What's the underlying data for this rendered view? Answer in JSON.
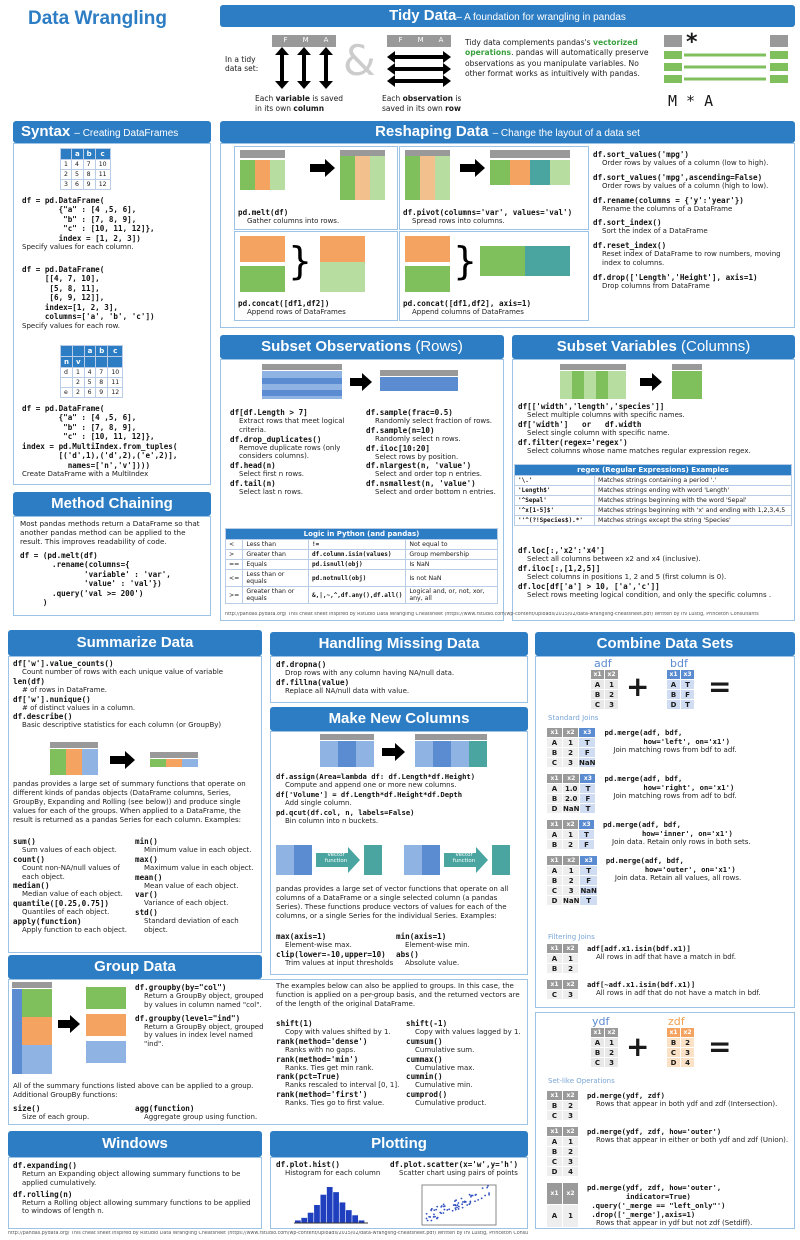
{
  "title": "Data Wrangling",
  "tidy": {
    "header": "Tidy Data",
    "subheader": "– A foundation for wrangling in pandas",
    "in_a_tidy": "In a tidy\ndata set:",
    "amp": "&",
    "var_caption_1": "Each ",
    "var_caption_b": "variable",
    "var_caption_2": " is saved in its own ",
    "var_caption_c": "column",
    "obs_caption_1": "Each ",
    "obs_caption_b": "observation",
    "obs_caption_2": " is saved in its own ",
    "obs_caption_c": "row",
    "desc_1": "Tidy data complements pandas's ",
    "desc_v": "vectorized operations",
    "desc_2": ". pandas will automatically preserve observations as you manipulate variables. No other format works as intuitively with pandas.",
    "mstar": "M * A",
    "fma": [
      "F",
      "M",
      "A"
    ]
  },
  "syntax": {
    "header": "Syntax",
    "subheader": "– Creating DataFrames",
    "table1_cols": [
      "",
      "a",
      "b",
      "c"
    ],
    "table1_rows": [
      [
        "1",
        "4",
        "7",
        "10"
      ],
      [
        "2",
        "5",
        "8",
        "11"
      ],
      [
        "3",
        "6",
        "9",
        "12"
      ]
    ],
    "code1": "df = pd.DataFrame(\n        {\"a\" : [4 ,5, 6],\n         \"b\" : [7, 8, 9],\n         \"c\" : [10, 11, 12]},\n        index = [1, 2, 3])",
    "desc1": "Specify values for each column.",
    "code2": "df = pd.DataFrame(\n     [[4, 7, 10],\n      [5, 8, 11],\n      [6, 9, 12]],\n     index=[1, 2, 3],\n     columns=['a', 'b', 'c'])",
    "desc2": "Specify values for each row.",
    "table2_cols": [
      "",
      "",
      "a",
      "b",
      "c"
    ],
    "table2_sub": [
      "n",
      "v",
      "",
      "",
      ""
    ],
    "table2_rows": [
      [
        "d",
        "1",
        "4",
        "7",
        "10"
      ],
      [
        "",
        "2",
        "5",
        "8",
        "11"
      ],
      [
        "e",
        "2",
        "6",
        "9",
        "12"
      ]
    ],
    "code3": "df = pd.DataFrame(\n        {\"a\" : [4 ,5, 6],\n         \"b\" : [7, 8, 9],\n         \"c\" : [10, 11, 12]},\nindex = pd.MultiIndex.from_tuples(\n        [('d',1),('d',2),('e',2)],\n          names=['n','v'])))",
    "desc3": "Create DataFrame with a MultiIndex"
  },
  "method": {
    "header": "Method Chaining",
    "desc": "Most pandas methods return a DataFrame so that another pandas method can be applied to the result. This improves readability of code.",
    "code": "df = (pd.melt(df)\n       .rename(columns={\n              'variable' : 'var',\n              'value' : 'val'})\n       .query('val >= 200')\n     )"
  },
  "reshape": {
    "header": "Reshaping Data",
    "subheader": "– Change the layout of a data set",
    "melt": "pd.melt(df)",
    "melt_d": "Gather columns into rows.",
    "pivot": "df.pivot(columns='var', values='val')",
    "pivot_d": "Spread rows into columns.",
    "concat": "pd.concat([df1,df2])",
    "concat_d": "Append rows of DataFrames",
    "concat1": "pd.concat([df1,df2], axis=1)",
    "concat1_d": "Append columns of DataFrames",
    "right": [
      {
        "c": "df.sort_values('mpg')",
        "d": "Order rows by values of a column (low to high)."
      },
      {
        "c": "df.sort_values('mpg',ascending=False)",
        "d": "Order rows by values of a column (high to low)."
      },
      {
        "c": "df.rename(columns = {'y':'year'})",
        "d": "Rename the columns of a DataFrame"
      },
      {
        "c": "df.sort_index()",
        "d": "Sort the index of a DataFrame"
      },
      {
        "c": "df.reset_index()",
        "d": "Reset index of DataFrame to row numbers, moving index to columns."
      },
      {
        "c": "df.drop(['Length','Height'], axis=1)",
        "d": "Drop columns from DataFrame"
      }
    ]
  },
  "subset_rows": {
    "header": "Subset Observations",
    "header2": " (Rows)",
    "left": [
      {
        "c": "df[df.Length > 7]",
        "d": "Extract rows that meet logical criteria."
      },
      {
        "c": "df.drop_duplicates()",
        "d": "Remove duplicate rows (only considers columns)."
      },
      {
        "c": "df.head(n)",
        "d": "Select first n rows."
      },
      {
        "c": "df.tail(n)",
        "d": "Select last n rows."
      }
    ],
    "right": [
      {
        "c": "df.sample(frac=0.5)",
        "d": "Randomly select fraction of rows."
      },
      {
        "c": "df.sample(n=10)",
        "d": "Randomly select n rows."
      },
      {
        "c": "df.iloc[10:20]",
        "d": "Select rows by position."
      },
      {
        "c": "df.nlargest(n, 'value')",
        "d": "Select and order top n entries."
      },
      {
        "c": "df.nsmallest(n, 'value')",
        "d": "Select and order bottom n entries."
      }
    ],
    "logic_header": "Logic in Python (and pandas)",
    "logic": [
      [
        "<",
        "Less than",
        "!=",
        "Not equal to"
      ],
      [
        ">",
        "Greater than",
        "df.column.isin(values)",
        "Group membership"
      ],
      [
        "==",
        "Equals",
        "pd.isnull(obj)",
        "Is NaN"
      ],
      [
        "<=",
        "Less than or equals",
        "pd.notnull(obj)",
        "Is not NaN"
      ],
      [
        ">=",
        "Greater than or equals",
        "&,|,~,^,df.any(),df.all()",
        "Logical and, or, not, xor, any, all"
      ]
    ]
  },
  "subset_cols": {
    "header": "Subset Variables",
    "header2": " (Columns)",
    "items": [
      {
        "c": "df[['width','length','species']]",
        "d": "Select multiple columns with specific names."
      },
      {
        "c": "df['width']   or   df.width",
        "d": "Select single column with specific name."
      },
      {
        "c": "df.filter(regex='regex')",
        "d": "Select columns whose name matches regular expression regex."
      }
    ],
    "regex_header": "regex (Regular Expressions) Examples",
    "regex": [
      [
        "'\\.'",
        "Matches strings containing a period '.'"
      ],
      [
        "'Length$'",
        "Matches strings ending with word 'Length'"
      ],
      [
        "'^Sepal'",
        "Matches strings beginning with the word 'Sepal'"
      ],
      [
        "'^x[1-5]$'",
        "Matches strings beginning with 'x' and ending with 1,2,3,4,5"
      ],
      [
        "''^(?!Species$).*'",
        "Matches strings except the string 'Species'"
      ]
    ],
    "items2": [
      {
        "c": "df.loc[:,'x2':'x4']",
        "d": "Select all columns between x2 and x4 (inclusive)."
      },
      {
        "c": "df.iloc[:,[1,2,5]]",
        "d": "Select columns in positions 1, 2 and 5 (first column is 0)."
      },
      {
        "c": "df.loc[df['a'] > 10, ['a','c']]",
        "d": "Select rows meeting logical condition, and only the specific columns ."
      }
    ]
  },
  "footer1": "http://pandas.pydata.org/   This cheat sheet inspired by Rstudio Data Wrangling Cheatsheet (https://www.rstudio.com/wp-content/uploads/2015/02/data-wrangling-cheatsheet.pdf) Written by Irv Lustig, Princeton Consultants",
  "summarize": {
    "header": "Summarize Data",
    "top": [
      {
        "c": "df['w'].value_counts()",
        "d": "Count number of rows with each unique value of variable"
      },
      {
        "c": "len(df)",
        "d": "# of rows in DataFrame."
      },
      {
        "c": "df['w'].nunique()",
        "d": "# of distinct values in a column."
      },
      {
        "c": "df.describe()",
        "d": "Basic descriptive statistics for each column (or GroupBy)"
      }
    ],
    "para": "pandas provides a large set of summary functions that operate on different kinds of pandas objects (DataFrame columns, Series, GroupBy, Expanding and Rolling (see below)) and produce single values for each of the groups. When applied to a DataFrame, the result is returned as a pandas Series for each column. Examples:",
    "left": [
      {
        "c": "sum()",
        "d": "Sum values of each object."
      },
      {
        "c": "count()",
        "d": "Count non-NA/null values of each object."
      },
      {
        "c": "median()",
        "d": "Median value of each object."
      },
      {
        "c": "quantile([0.25,0.75])",
        "d": "Quantiles of each object."
      },
      {
        "c": "apply(function)",
        "d": "Apply function to each object."
      }
    ],
    "right": [
      {
        "c": "min()",
        "d": "Minimum value in each object."
      },
      {
        "c": "max()",
        "d": "Maximum value in each object."
      },
      {
        "c": "mean()",
        "d": "Mean value of each object."
      },
      {
        "c": "var()",
        "d": "Variance of each object."
      },
      {
        "c": "std()",
        "d": "Standard deviation of each object."
      }
    ]
  },
  "missing": {
    "header": "Handling Missing Data",
    "items": [
      {
        "c": "df.dropna()",
        "d": "Drop rows with any column having NA/null data."
      },
      {
        "c": "df.fillna(value)",
        "d": "Replace all NA/null data with value."
      }
    ]
  },
  "newcols": {
    "header": "Make New Columns",
    "items": [
      {
        "c": "df.assign(Area=lambda df: df.Length*df.Height)",
        "d": "Compute and append one or more new columns."
      },
      {
        "c": "df['Volume'] = df.Length*df.Height*df.Depth",
        "d": "Add single column."
      },
      {
        "c": "pd.qcut(df.col, n, labels=False)",
        "d": "Bin column into n buckets."
      }
    ],
    "vf": "Vector function",
    "para": "pandas provides a large set of vector functions that operate on all columns of a DataFrame or a single selected column (a pandas Series). These functions produce vectors of values for each of the columns, or a single Series for the individual Series. Examples:",
    "left": [
      {
        "c": "max(axis=1)",
        "d": "Element-wise max."
      },
      {
        "c": "clip(lower=-10,upper=10)",
        "d": "Trim values at input thresholds"
      }
    ],
    "right": [
      {
        "c": "min(axis=1)",
        "d": "Element-wise min."
      },
      {
        "c": "abs()",
        "d": "Absolute value."
      }
    ]
  },
  "group": {
    "header": "Group Data",
    "items": [
      {
        "c": "df.groupby(by=\"col\")",
        "d": "Return a GroupBy object, grouped by values in column named \"col\"."
      },
      {
        "c": "df.groupby(level=\"ind\")",
        "d": "Return a GroupBy object, grouped by values in index level named \"ind\"."
      }
    ],
    "para": "All of the summary functions listed above can be applied to a group. Additional GroupBy functions:",
    "left": [
      {
        "c": "size()",
        "d": "Size of each group."
      }
    ],
    "right": [
      {
        "c": "agg(function)",
        "d": "Aggregate group using function."
      }
    ],
    "para2": "The examples below can also be applied to groups. In this case, the function is applied on a per-group basis, and the returned vectors are of the length of the original DataFrame.",
    "l2": [
      {
        "c": "shift(1)",
        "d": "Copy with values shifted by 1."
      },
      {
        "c": "rank(method='dense')",
        "d": "Ranks with no gaps."
      },
      {
        "c": "rank(method='min')",
        "d": "Ranks. Ties get min rank."
      },
      {
        "c": "rank(pct=True)",
        "d": "Ranks rescaled to interval [0, 1]."
      },
      {
        "c": "rank(method='first')",
        "d": "Ranks. Ties go to first value."
      }
    ],
    "r2": [
      {
        "c": "shift(-1)",
        "d": "Copy with values lagged by 1."
      },
      {
        "c": "cumsum()",
        "d": "Cumulative sum."
      },
      {
        "c": "cummax()",
        "d": "Cumulative max."
      },
      {
        "c": "cummin()",
        "d": "Cumulative min."
      },
      {
        "c": "cumprod()",
        "d": "Cumulative product."
      }
    ]
  },
  "windows": {
    "header": "Windows",
    "items": [
      {
        "c": "df.expanding()",
        "d": "Return an Expanding object allowing summary functions to be applied cumulatively."
      },
      {
        "c": "df.rolling(n)",
        "d": "Return a Rolling object allowing summary functions to be applied to windows of length n."
      }
    ]
  },
  "plotting": {
    "header": "Plotting",
    "hist": "df.plot.hist()",
    "hist_d": "Histogram for each column",
    "scatter": "df.plot.scatter(x='w',y='h')",
    "scatter_d": "Scatter chart using pairs of points"
  },
  "combine": {
    "header": "Combine Data Sets",
    "adf": "adf",
    "bdf": "bdf",
    "adf_rows": [
      [
        "x1",
        "x2"
      ],
      [
        "A",
        "1"
      ],
      [
        "B",
        "2"
      ],
      [
        "C",
        "3"
      ]
    ],
    "bdf_rows": [
      [
        "x1",
        "x3"
      ],
      [
        "A",
        "T"
      ],
      [
        "B",
        "F"
      ],
      [
        "D",
        "T"
      ]
    ],
    "std": "Standard Joins",
    "joins": [
      {
        "rows": [
          [
            "x1",
            "x2",
            "x3"
          ],
          [
            "A",
            "1",
            "T"
          ],
          [
            "B",
            "2",
            "F"
          ],
          [
            "C",
            "3",
            "NaN"
          ]
        ],
        "c": "pd.merge(adf, bdf,\n         how='left', on='x1')",
        "d": "Join matching rows from bdf to adf."
      },
      {
        "rows": [
          [
            "x1",
            "x2",
            "x3"
          ],
          [
            "A",
            "1.0",
            "T"
          ],
          [
            "B",
            "2.0",
            "F"
          ],
          [
            "D",
            "NaN",
            "T"
          ]
        ],
        "c": "pd.merge(adf, bdf,\n         how='right', on='x1')",
        "d": "Join matching rows from adf to bdf."
      },
      {
        "rows": [
          [
            "x1",
            "x2",
            "x3"
          ],
          [
            "A",
            "1",
            "T"
          ],
          [
            "B",
            "2",
            "F"
          ]
        ],
        "c": "pd.merge(adf, bdf,\n         how='inner', on='x1')",
        "d": "Join data. Retain only rows in both sets."
      },
      {
        "rows": [
          [
            "x1",
            "x2",
            "x3"
          ],
          [
            "A",
            "1",
            "T"
          ],
          [
            "B",
            "2",
            "F"
          ],
          [
            "C",
            "3",
            "NaN"
          ],
          [
            "D",
            "NaN",
            "T"
          ]
        ],
        "c": "pd.merge(adf, bdf,\n         how='outer', on='x1')",
        "d": "Join data. Retain all values, all rows."
      }
    ],
    "filt": "Filtering Joins",
    "filters": [
      {
        "rows": [
          [
            "x1",
            "x2"
          ],
          [
            "A",
            "1"
          ],
          [
            "B",
            "2"
          ]
        ],
        "c": "adf[adf.x1.isin(bdf.x1)]",
        "d": "All rows in adf that have a match in bdf."
      },
      {
        "rows": [
          [
            "x1",
            "x2"
          ],
          [
            "C",
            "3"
          ]
        ],
        "c": "adf[~adf.x1.isin(bdf.x1)]",
        "d": "All rows in adf that do not have a match in bdf."
      }
    ],
    "ydf": "ydf",
    "zdf": "zdf",
    "ydf_rows": [
      [
        "x1",
        "x2"
      ],
      [
        "A",
        "1"
      ],
      [
        "B",
        "2"
      ],
      [
        "C",
        "3"
      ]
    ],
    "zdf_rows": [
      [
        "x1",
        "x2"
      ],
      [
        "B",
        "2"
      ],
      [
        "C",
        "3"
      ],
      [
        "D",
        "4"
      ]
    ],
    "setlike": "Set-like Operations",
    "sets": [
      {
        "rows": [
          [
            "x1",
            "x2"
          ],
          [
            "B",
            "2"
          ],
          [
            "C",
            "3"
          ]
        ],
        "c": "pd.merge(ydf, zdf)",
        "d": "Rows that appear in both ydf and zdf (Intersection)."
      },
      {
        "rows": [
          [
            "x1",
            "x2"
          ],
          [
            "A",
            "1"
          ],
          [
            "B",
            "2"
          ],
          [
            "C",
            "3"
          ],
          [
            "D",
            "4"
          ]
        ],
        "c": "pd.merge(ydf, zdf, how='outer')",
        "d": "Rows that appear in either or both ydf and zdf (Union)."
      },
      {
        "rows": [
          [
            "x1",
            "x2"
          ],
          [
            "A",
            "1"
          ]
        ],
        "c": "pd.merge(ydf, zdf, how='outer',\n         indicator=True)\n .query('_merge == \"left_only\"')\n .drop(['_merge'],axis=1)",
        "d": "Rows that appear in ydf but not zdf (Setdiff)."
      }
    ]
  },
  "hist_values": [
    1,
    2,
    4,
    7,
    11,
    14,
    12,
    8,
    5,
    3,
    1
  ],
  "footer2": "http://pandas.pydata.org/   This cheat sheet inspired by Rstudio Data Wrangling Cheatsheet (https://www.rstudio.com/wp-content/uploads/2015/02/data-wrangling-cheatsheet.pdf) Written by Irv Lustig, Princeton Consultants"
}
